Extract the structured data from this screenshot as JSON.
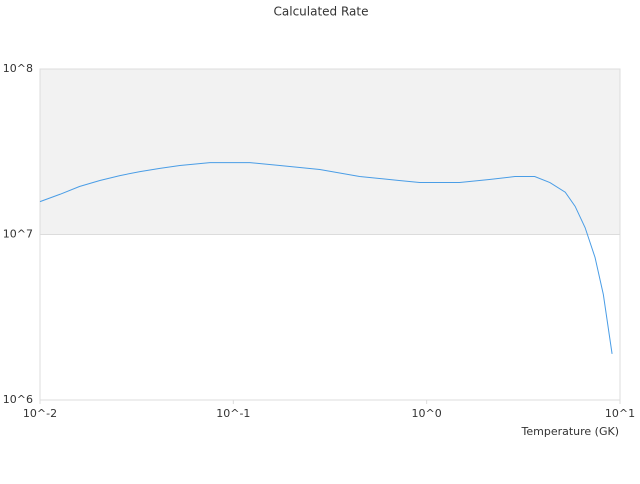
{
  "chart_data": {
    "type": "line",
    "title": "Calculated Rate",
    "x_label": "Temperature (GK)",
    "x": [
      0.01,
      0.0127,
      0.016,
      0.0204,
      0.0259,
      0.0329,
      0.0417,
      0.0529,
      0.0757,
      0.1219,
      0.174,
      0.28,
      0.45,
      0.72,
      0.92,
      1.48,
      2.11,
      2.86,
      3.62,
      4.34,
      5.21,
      5.86,
      6.6,
      7.43,
      8.2,
      9.1
    ],
    "values": [
      15800000,
      17500000,
      19500000,
      21200000,
      22700000,
      24000000,
      25100000,
      26100000,
      27200000,
      27200000,
      26100000,
      24700000,
      22400000,
      21200000,
      20600000,
      20600000,
      21500000,
      22400000,
      22400000,
      20600000,
      18000000,
      14800000,
      11000000,
      7260000,
      4340000,
      1900000
    ],
    "color": "#4a9de6",
    "xscale": "log",
    "yscale": "log",
    "xlim": [
      0.01,
      10
    ],
    "ylim": [
      1000000,
      100000000
    ],
    "xticks": [
      {
        "value": 0.01,
        "label": "10^-2"
      },
      {
        "value": 0.1,
        "label": "10^-1"
      },
      {
        "value": 1,
        "label": "10^0"
      },
      {
        "value": 10,
        "label": "10^1"
      }
    ],
    "yticks": [
      {
        "value": 1000000,
        "label": "10^6"
      },
      {
        "value": 10000000,
        "label": "10^7"
      },
      {
        "value": 100000000,
        "label": "10^8"
      }
    ],
    "grid": true
  }
}
